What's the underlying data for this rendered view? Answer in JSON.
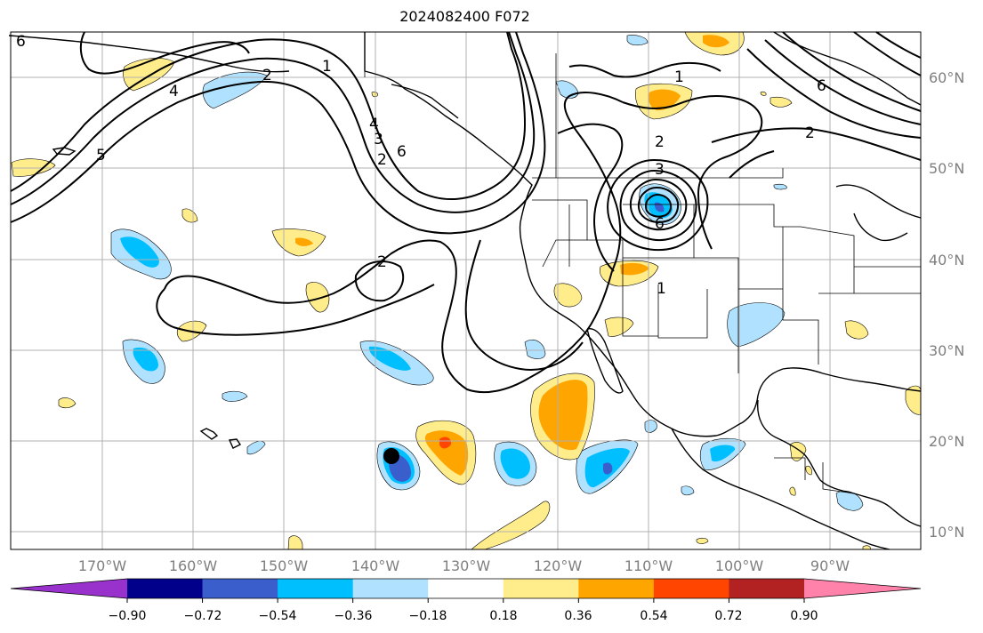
{
  "title": "2024082400 F072",
  "map": {
    "lat_labels": [
      "60°N",
      "50°N",
      "40°N",
      "30°N",
      "20°N",
      "10°N"
    ],
    "lon_labels": [
      "170°W",
      "160°W",
      "150°W",
      "140°W",
      "130°W",
      "120°W",
      "110°W",
      "100°W",
      "90°W"
    ],
    "contour_labels": [
      "6",
      "4",
      "2",
      "1",
      "2",
      "3",
      "4",
      "6",
      "2",
      "1",
      "2",
      "3",
      "6",
      "2",
      "1",
      "5",
      "6"
    ],
    "marker": "storm-center"
  },
  "colorbar": {
    "ticks": [
      "−0.90",
      "−0.72",
      "−0.54",
      "−0.36",
      "−0.18",
      "0.18",
      "0.36",
      "0.54",
      "0.72",
      "0.90"
    ],
    "colors": [
      "#9932cc",
      "#00008b",
      "#3a5fcd",
      "#00bfff",
      "#b0e2ff",
      "#ffffff",
      "#ffec8b",
      "#ffa500",
      "#ff4500",
      "#b22222",
      "#ff82ab"
    ]
  }
}
